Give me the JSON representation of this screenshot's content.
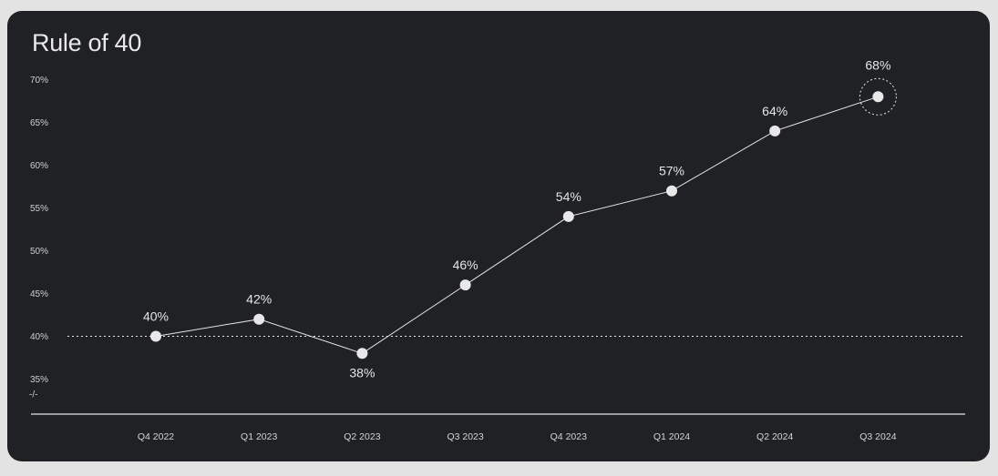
{
  "chart_data": {
    "type": "line",
    "title": "Rule of 40",
    "categories": [
      "Q4 2022",
      "Q1 2023",
      "Q2 2023",
      "Q3 2023",
      "Q4 2023",
      "Q1 2024",
      "Q2 2024",
      "Q3 2024"
    ],
    "values": [
      40,
      42,
      38,
      46,
      54,
      57,
      64,
      68
    ],
    "data_labels": [
      "40%",
      "42%",
      "38%",
      "46%",
      "54%",
      "57%",
      "64%",
      "68%"
    ],
    "y_ticks": [
      {
        "value": 70,
        "label": "70%"
      },
      {
        "value": 65,
        "label": "65%"
      },
      {
        "value": 60,
        "label": "60%"
      },
      {
        "value": 55,
        "label": "55%"
      },
      {
        "value": 50,
        "label": "50%"
      },
      {
        "value": 45,
        "label": "45%"
      },
      {
        "value": 40,
        "label": "40%"
      },
      {
        "value": 35,
        "label": "35%"
      }
    ],
    "axis_break_symbol": "-/-",
    "ylim": [
      35,
      70
    ],
    "reference_line": {
      "value": 40,
      "style": "dotted"
    },
    "highlighted_point": "Q3 2024",
    "grid": false,
    "colors": {
      "background": "#1f2124",
      "line": "#e6e6e6",
      "text": "#e6e6e6"
    }
  }
}
